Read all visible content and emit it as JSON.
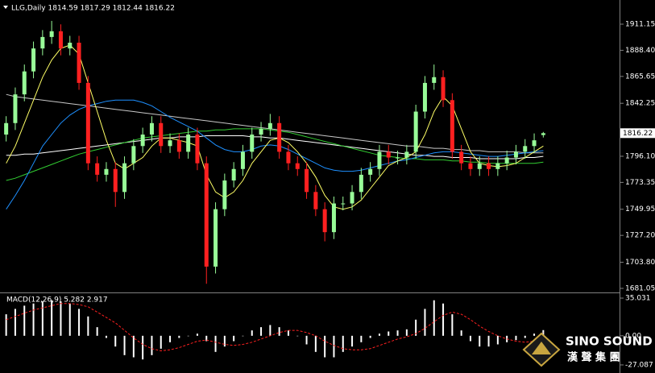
{
  "chart_data": [
    {
      "type": "candlestick",
      "title": "LLG,Daily  1814.59 1817.29 1812.44 1816.22",
      "up_color": "#98fb98",
      "down_color": "#ff2020",
      "open": [
        1815,
        1825,
        1850,
        1870,
        1890,
        1900,
        1905,
        1890,
        1895,
        1860,
        1790,
        1780,
        1785,
        1765,
        1790,
        1805,
        1815,
        1825,
        1805,
        1810,
        1800,
        1815,
        1790,
        1700,
        1750,
        1775,
        1785,
        1800,
        1815,
        1820,
        1825,
        1800,
        1790,
        1785,
        1765,
        1750,
        1730,
        1755,
        1755,
        1765,
        1780,
        1785,
        1800,
        1795,
        1795,
        1800,
        1835,
        1860,
        1865,
        1845,
        1800,
        1790,
        1785,
        1790,
        1785,
        1790,
        1795,
        1800,
        1805,
        1814.59
      ],
      "high": [
        1831,
        1856,
        1876,
        1896,
        1906,
        1914,
        1911,
        1901,
        1901,
        1866,
        1796,
        1791,
        1791,
        1796,
        1811,
        1821,
        1831,
        1831,
        1816,
        1816,
        1821,
        1821,
        1796,
        1756,
        1781,
        1791,
        1806,
        1821,
        1826,
        1833,
        1831,
        1806,
        1796,
        1791,
        1771,
        1756,
        1761,
        1761,
        1771,
        1786,
        1791,
        1806,
        1806,
        1801,
        1806,
        1841,
        1866,
        1876,
        1871,
        1851,
        1806,
        1796,
        1796,
        1796,
        1796,
        1801,
        1806,
        1811,
        1816,
        1817.29
      ],
      "low": [
        1809,
        1819,
        1844,
        1864,
        1884,
        1894,
        1884,
        1884,
        1854,
        1784,
        1774,
        1774,
        1752,
        1759,
        1784,
        1799,
        1809,
        1799,
        1799,
        1794,
        1794,
        1784,
        1685,
        1694,
        1744,
        1769,
        1779,
        1794,
        1809,
        1814,
        1794,
        1784,
        1779,
        1759,
        1744,
        1722,
        1724,
        1749,
        1749,
        1759,
        1774,
        1779,
        1789,
        1789,
        1789,
        1794,
        1829,
        1854,
        1839,
        1794,
        1784,
        1779,
        1779,
        1779,
        1779,
        1784,
        1789,
        1794,
        1799,
        1812.44
      ],
      "close": [
        1825,
        1850,
        1870,
        1890,
        1900,
        1905,
        1890,
        1895,
        1860,
        1790,
        1780,
        1785,
        1765,
        1790,
        1805,
        1815,
        1825,
        1805,
        1810,
        1800,
        1815,
        1790,
        1700,
        1750,
        1775,
        1785,
        1800,
        1815,
        1820,
        1825,
        1800,
        1790,
        1785,
        1765,
        1750,
        1730,
        1755,
        1755,
        1765,
        1780,
        1785,
        1800,
        1795,
        1795,
        1800,
        1835,
        1860,
        1865,
        1845,
        1800,
        1790,
        1785,
        1790,
        1785,
        1790,
        1795,
        1800,
        1805,
        1810,
        1816.22
      ],
      "series": [
        {
          "color": "#c8c8c8",
          "values": [
            1850,
            1848,
            1847,
            1846,
            1845,
            1844,
            1843,
            1842,
            1841,
            1840,
            1839,
            1838,
            1837,
            1836,
            1835,
            1834,
            1833,
            1832,
            1831,
            1830,
            1829,
            1828,
            1827,
            1826,
            1825,
            1824,
            1823,
            1822,
            1821,
            1820,
            1819,
            1818,
            1817,
            1816,
            1815,
            1814,
            1813,
            1812,
            1811,
            1810,
            1809,
            1808,
            1807,
            1806,
            1805,
            1805,
            1804,
            1803,
            1803,
            1802,
            1802,
            1801,
            1801,
            1800,
            1800,
            1800,
            1800,
            1799,
            1799,
            1799
          ]
        },
        {
          "color": "#ffffff",
          "values": [
            1797,
            1797,
            1798,
            1798,
            1799,
            1800,
            1801,
            1802,
            1803,
            1804,
            1805,
            1806,
            1807,
            1808,
            1809,
            1810,
            1811,
            1812,
            1812,
            1813,
            1813,
            1813,
            1814,
            1814,
            1814,
            1814,
            1814,
            1813,
            1813,
            1812,
            1812,
            1811,
            1810,
            1809,
            1808,
            1807,
            1806,
            1805,
            1804,
            1803,
            1802,
            1801,
            1800,
            1799,
            1798,
            1797,
            1797,
            1796,
            1796,
            1795,
            1795,
            1795,
            1794,
            1794,
            1794,
            1794,
            1794,
            1795,
            1795,
            1796
          ]
        },
        {
          "color": "#32cd32",
          "values": [
            1775,
            1777,
            1780,
            1783,
            1786,
            1789,
            1792,
            1795,
            1798,
            1800,
            1802,
            1804,
            1806,
            1808,
            1810,
            1812,
            1813,
            1814,
            1815,
            1816,
            1817,
            1818,
            1818,
            1819,
            1819,
            1820,
            1820,
            1820,
            1820,
            1819,
            1818,
            1817,
            1815,
            1813,
            1811,
            1809,
            1807,
            1805,
            1803,
            1801,
            1799,
            1797,
            1796,
            1795,
            1794,
            1794,
            1793,
            1793,
            1793,
            1792,
            1792,
            1791,
            1791,
            1790,
            1790,
            1790,
            1790,
            1790,
            1790,
            1791
          ]
        },
        {
          "color": "#1e90ff",
          "values": [
            1750,
            1762,
            1775,
            1790,
            1805,
            1815,
            1825,
            1832,
            1837,
            1840,
            1842,
            1844,
            1845,
            1845,
            1845,
            1843,
            1840,
            1835,
            1830,
            1826,
            1822,
            1818,
            1812,
            1806,
            1802,
            1800,
            1800,
            1802,
            1805,
            1806,
            1805,
            1802,
            1798,
            1794,
            1790,
            1786,
            1784,
            1783,
            1783,
            1784,
            1786,
            1788,
            1790,
            1792,
            1793,
            1795,
            1797,
            1799,
            1800,
            1800,
            1799,
            1798,
            1797,
            1796,
            1796,
            1797,
            1798,
            1799,
            1800,
            1801
          ]
        },
        {
          "color": "#ffff66",
          "values": [
            1790,
            1805,
            1825,
            1845,
            1865,
            1880,
            1890,
            1893,
            1885,
            1860,
            1835,
            1810,
            1790,
            1785,
            1790,
            1795,
            1805,
            1812,
            1812,
            1810,
            1808,
            1805,
            1780,
            1765,
            1760,
            1765,
            1775,
            1790,
            1800,
            1810,
            1812,
            1808,
            1800,
            1790,
            1778,
            1762,
            1752,
            1750,
            1752,
            1758,
            1768,
            1778,
            1788,
            1792,
            1795,
            1800,
            1815,
            1835,
            1848,
            1840,
            1820,
            1800,
            1790,
            1788,
            1787,
            1788,
            1790,
            1795,
            1800,
            1805
          ]
        }
      ],
      "ylim": [
        1678.2,
        1930.8
      ],
      "yticks": [
        1911.15,
        {
          "value": 1888.4,
          "label": "1888.40"
        },
        1865.65,
        1842.25,
        {
          "value": 1796.1,
          "label": "1796.10"
        },
        1773.35,
        1749.95,
        {
          "value": 1727.2,
          "label": "1727.20"
        },
        {
          "value": 1703.8,
          "label": "1703.80"
        },
        1681.05
      ],
      "current_price": 1816.22
    },
    {
      "type": "macd",
      "title": "MACD(12,26,9) 5.282 2.917",
      "histogram": {
        "color": "#ffffff",
        "values": [
          20,
          25,
          28,
          30,
          32,
          33,
          32,
          30,
          25,
          18,
          8,
          -2,
          -10,
          -18,
          -20,
          -22,
          -18,
          -12,
          -6,
          -2,
          0,
          2,
          -5,
          -15,
          -10,
          -5,
          0,
          5,
          8,
          10,
          8,
          5,
          0,
          -8,
          -15,
          -20,
          -20,
          -15,
          -10,
          -6,
          -2,
          2,
          4,
          5,
          6,
          15,
          25,
          33,
          30,
          20,
          5,
          -5,
          -10,
          -10,
          -8,
          -6,
          -4,
          -2,
          2,
          5.282
        ]
      },
      "signal": {
        "color": "#ff2020",
        "values": [
          15,
          18,
          21,
          24,
          26,
          28,
          30,
          30,
          29,
          27,
          22,
          17,
          12,
          5,
          -2,
          -8,
          -12,
          -14,
          -13,
          -11,
          -8,
          -5,
          -4,
          -6,
          -8,
          -9,
          -8,
          -6,
          -3,
          0,
          3,
          5,
          5,
          3,
          0,
          -5,
          -9,
          -12,
          -13,
          -13,
          -12,
          -9,
          -6,
          -3,
          -1,
          2,
          7,
          13,
          19,
          22,
          20,
          15,
          9,
          4,
          0,
          -3,
          -5,
          -6,
          -5,
          2.917
        ]
      },
      "ylim": [
        -33.1,
        38.8
      ],
      "yticks": [
        35.031,
        {
          "value": 0,
          "label": "0.00"
        },
        -27.087
      ]
    }
  ],
  "logo": {
    "name": "SINO SOUND",
    "chinese": "漢 聲 集 團"
  }
}
